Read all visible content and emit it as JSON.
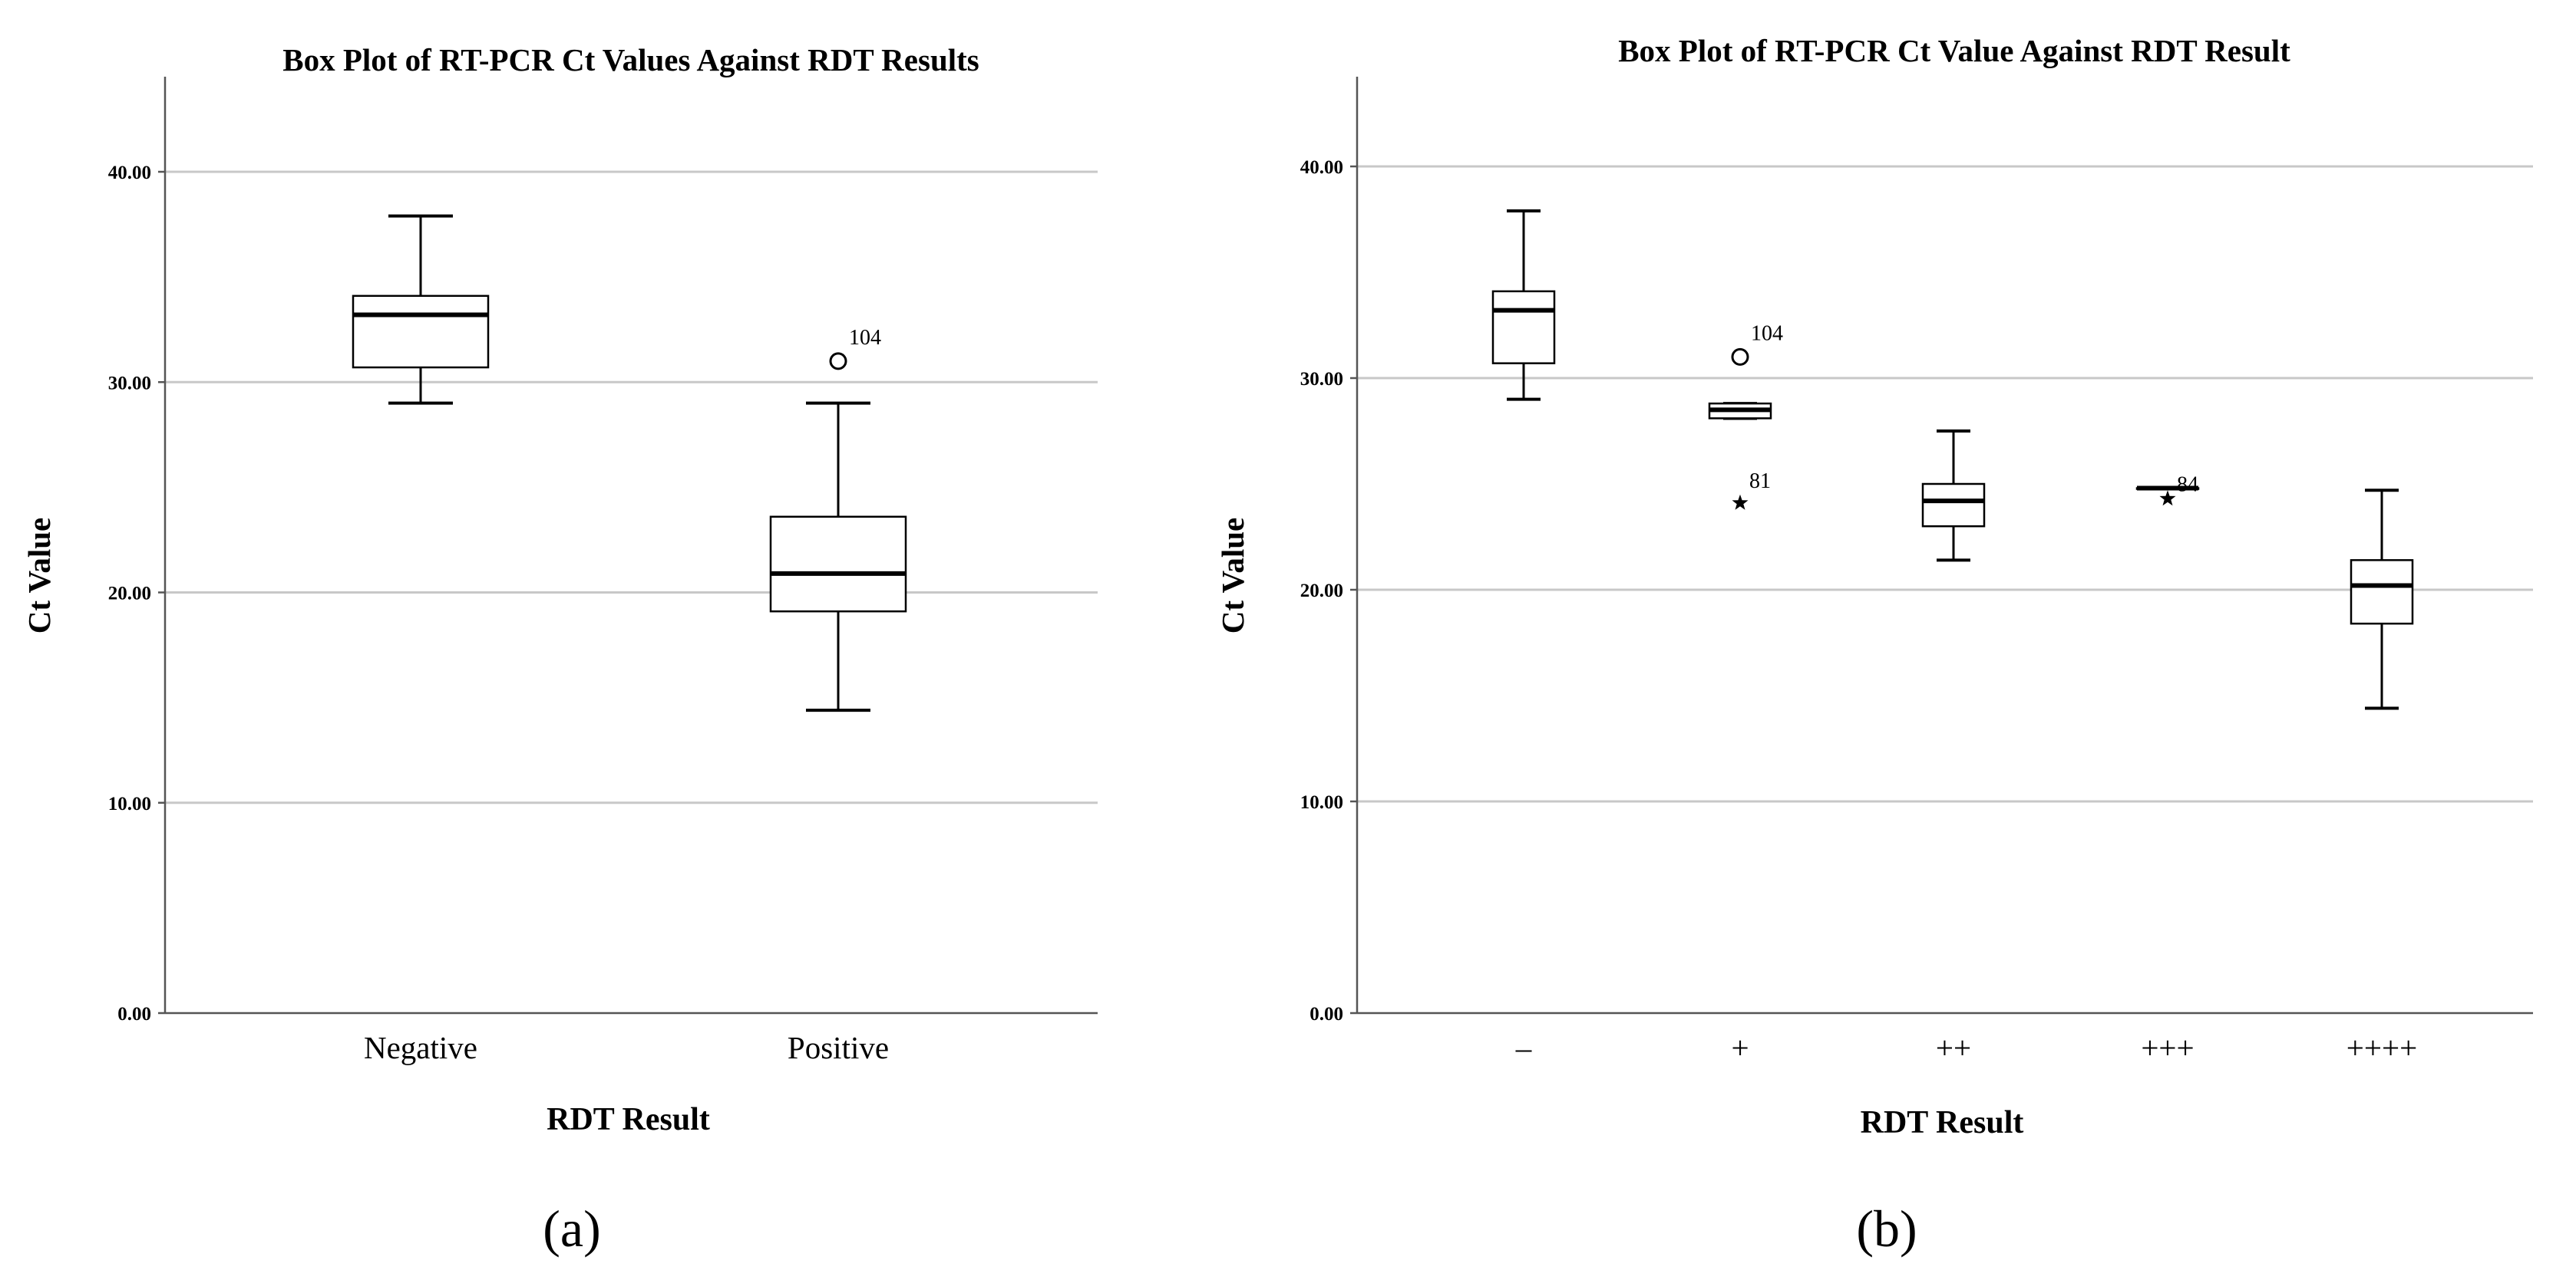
{
  "chart_data": [
    {
      "panel_label": "(a)",
      "type": "box",
      "title": "Box Plot of RT-PCR Ct Values Against RDT Results",
      "xlabel": "RDT Result",
      "ylabel": "Ct Value",
      "ylim": [
        0,
        44.5
      ],
      "yticks": [
        0,
        10,
        20,
        30,
        40
      ],
      "ytick_labels": [
        "0.00",
        "10.00",
        "20.00",
        "30.00",
        "40.00"
      ],
      "grid": true,
      "categories": [
        "Negative",
        "Positive"
      ],
      "boxes": [
        {
          "category": "Negative",
          "whisker_low": 29.0,
          "q1": 30.7,
          "median": 33.2,
          "q3": 34.1,
          "whisker_high": 37.9,
          "outliers": []
        },
        {
          "category": "Positive",
          "whisker_low": 14.4,
          "q1": 19.1,
          "median": 20.9,
          "q3": 23.6,
          "whisker_high": 29.0,
          "outliers": [
            {
              "value": 31.0,
              "label": "104",
              "marker": "circle"
            }
          ]
        }
      ]
    },
    {
      "panel_label": "(b)",
      "type": "box",
      "title": "Box Plot of RT-PCR Ct Value Against RDT Result",
      "xlabel": "RDT Result",
      "ylabel": "Ct Value",
      "ylim": [
        0,
        44.5
      ],
      "yticks": [
        0,
        10,
        20,
        30,
        40
      ],
      "ytick_labels": [
        "0.00",
        "10.00",
        "20.00",
        "30.00",
        "40.00"
      ],
      "grid": true,
      "categories": [
        "–",
        "+",
        "++",
        "+++",
        "++++"
      ],
      "boxes": [
        {
          "category": "–",
          "whisker_low": 29.0,
          "q1": 30.7,
          "median": 33.2,
          "q3": 34.1,
          "whisker_high": 37.9,
          "outliers": []
        },
        {
          "category": "+",
          "whisker_low": 28.1,
          "q1": 28.1,
          "median": 28.5,
          "q3": 28.8,
          "whisker_high": 28.8,
          "outliers": [
            {
              "value": 31.0,
              "label": "104",
              "marker": "circle"
            },
            {
              "value": 24.1,
              "label": "81",
              "marker": "star"
            }
          ]
        },
        {
          "category": "++",
          "whisker_low": 21.4,
          "q1": 23.0,
          "median": 24.2,
          "q3": 25.0,
          "whisker_high": 27.5,
          "outliers": []
        },
        {
          "category": "+++",
          "whisker_low": 24.8,
          "q1": 24.8,
          "median": 24.8,
          "q3": 24.8,
          "whisker_high": 24.8,
          "outliers": [
            {
              "value": 24.3,
              "label": "84",
              "marker": "star"
            }
          ]
        },
        {
          "category": "++++",
          "whisker_low": 14.4,
          "q1": 18.4,
          "median": 20.2,
          "q3": 21.4,
          "whisker_high": 24.7,
          "outliers": []
        }
      ]
    }
  ]
}
